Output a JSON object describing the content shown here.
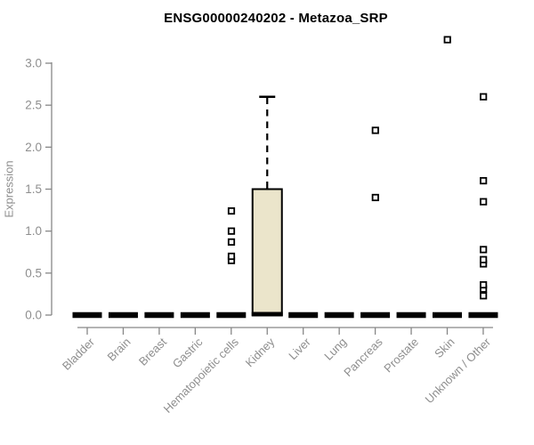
{
  "chart_data": {
    "type": "boxplot",
    "title": "ENSG00000240202 - Metazoa_SRP",
    "ylabel": "Expression",
    "xlabel": "",
    "ylim": [
      0,
      3.3
    ],
    "yticks": [
      0,
      0.5,
      1,
      1.5,
      2,
      2.5,
      3
    ],
    "ytick_labels": [
      "0.0",
      "0.5",
      "1.0",
      "1.5",
      "2.0",
      "2.5",
      "3.0"
    ],
    "grid": false,
    "legend": "none",
    "colors": {
      "box_fill": "#ebe5cb",
      "box_stroke": "#000000",
      "axis": "#878787",
      "tick_label": "#8e8e8e",
      "title": "#000000"
    },
    "categories": [
      "Bladder",
      "Brain",
      "Breast",
      "Gastric",
      "Hematopoietic cells",
      "Kidney",
      "Liver",
      "Lung",
      "Pancreas",
      "Prostate",
      "Skin",
      "Unknown / Other"
    ],
    "series": [
      {
        "category": "Bladder",
        "q1": 0,
        "median": 0,
        "q3": 0,
        "whisker_low": 0,
        "whisker_high": 0,
        "outliers": []
      },
      {
        "category": "Brain",
        "q1": 0,
        "median": 0,
        "q3": 0,
        "whisker_low": 0,
        "whisker_high": 0,
        "outliers": []
      },
      {
        "category": "Breast",
        "q1": 0,
        "median": 0,
        "q3": 0,
        "whisker_low": 0,
        "whisker_high": 0,
        "outliers": []
      },
      {
        "category": "Gastric",
        "q1": 0,
        "median": 0,
        "q3": 0,
        "whisker_low": 0,
        "whisker_high": 0,
        "outliers": []
      },
      {
        "category": "Hematopoietic cells",
        "q1": 0,
        "median": 0,
        "q3": 0,
        "whisker_low": 0,
        "whisker_high": 0,
        "outliers": [
          0.65,
          0.7,
          0.87,
          1.0,
          1.24
        ]
      },
      {
        "category": "Kidney",
        "q1": 0,
        "median": 0,
        "q3": 1.5,
        "whisker_low": 0,
        "whisker_high": 2.6,
        "outliers": []
      },
      {
        "category": "Liver",
        "q1": 0,
        "median": 0,
        "q3": 0,
        "whisker_low": 0,
        "whisker_high": 0,
        "outliers": []
      },
      {
        "category": "Lung",
        "q1": 0,
        "median": 0,
        "q3": 0,
        "whisker_low": 0,
        "whisker_high": 0,
        "outliers": []
      },
      {
        "category": "Pancreas",
        "q1": 0,
        "median": 0,
        "q3": 0,
        "whisker_low": 0,
        "whisker_high": 0,
        "outliers": [
          1.4,
          2.2
        ]
      },
      {
        "category": "Prostate",
        "q1": 0,
        "median": 0,
        "q3": 0,
        "whisker_low": 0,
        "whisker_high": 0,
        "outliers": []
      },
      {
        "category": "Skin",
        "q1": 0,
        "median": 0,
        "q3": 0,
        "whisker_low": 0,
        "whisker_high": 0,
        "outliers": [
          3.28
        ]
      },
      {
        "category": "Unknown / Other",
        "q1": 0,
        "median": 0,
        "q3": 0,
        "whisker_low": 0,
        "whisker_high": 0,
        "outliers": [
          0.23,
          0.31,
          0.36,
          0.61,
          0.66,
          0.78,
          1.35,
          1.6,
          2.6
        ]
      }
    ]
  }
}
